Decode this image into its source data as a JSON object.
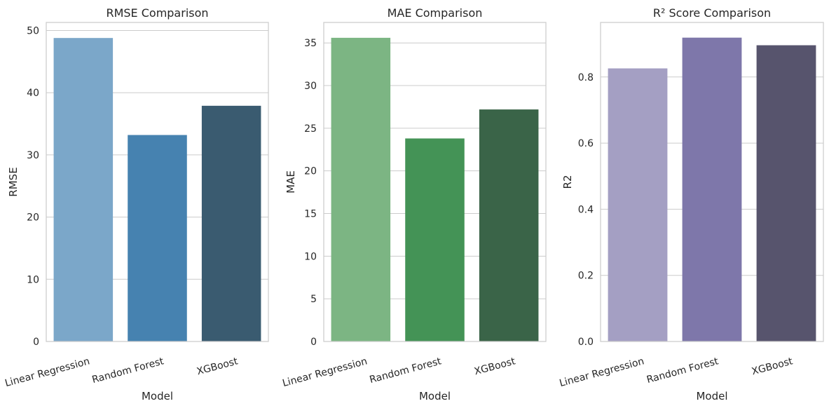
{
  "chart_data": [
    {
      "type": "bar",
      "title": "RMSE Comparison",
      "xlabel": "Model",
      "ylabel": "RMSE",
      "categories": [
        "Linear Regression",
        "Random Forest",
        "XGBoost"
      ],
      "values": [
        48.8,
        33.2,
        37.9
      ],
      "ylim": [
        0,
        51.3
      ],
      "yticks": [
        0,
        10,
        20,
        30,
        40,
        50
      ],
      "colors": [
        "#7ba7c9",
        "#4682b0",
        "#3a5b70"
      ],
      "grid": "y"
    },
    {
      "type": "bar",
      "title": "MAE Comparison",
      "xlabel": "Model",
      "ylabel": "MAE",
      "categories": [
        "Linear Regression",
        "Random Forest",
        "XGBoost"
      ],
      "values": [
        35.6,
        23.8,
        27.2
      ],
      "ylim": [
        0,
        37.4
      ],
      "yticks": [
        0,
        5,
        10,
        15,
        20,
        25,
        30,
        35
      ],
      "colors": [
        "#7cb583",
        "#449356",
        "#3a6448"
      ],
      "grid": "y"
    },
    {
      "type": "bar",
      "title": "R² Score Comparison",
      "xlabel": "Model",
      "ylabel": "R2",
      "categories": [
        "Linear Regression",
        "Random Forest",
        "XGBoost"
      ],
      "values": [
        0.826,
        0.919,
        0.896
      ],
      "ylim": [
        0,
        0.965
      ],
      "yticks": [
        "0.0",
        "0.2",
        "0.4",
        "0.6",
        "0.8"
      ],
      "colors": [
        "#a49fc3",
        "#7e77aa",
        "#57546d"
      ],
      "grid": "y"
    }
  ]
}
